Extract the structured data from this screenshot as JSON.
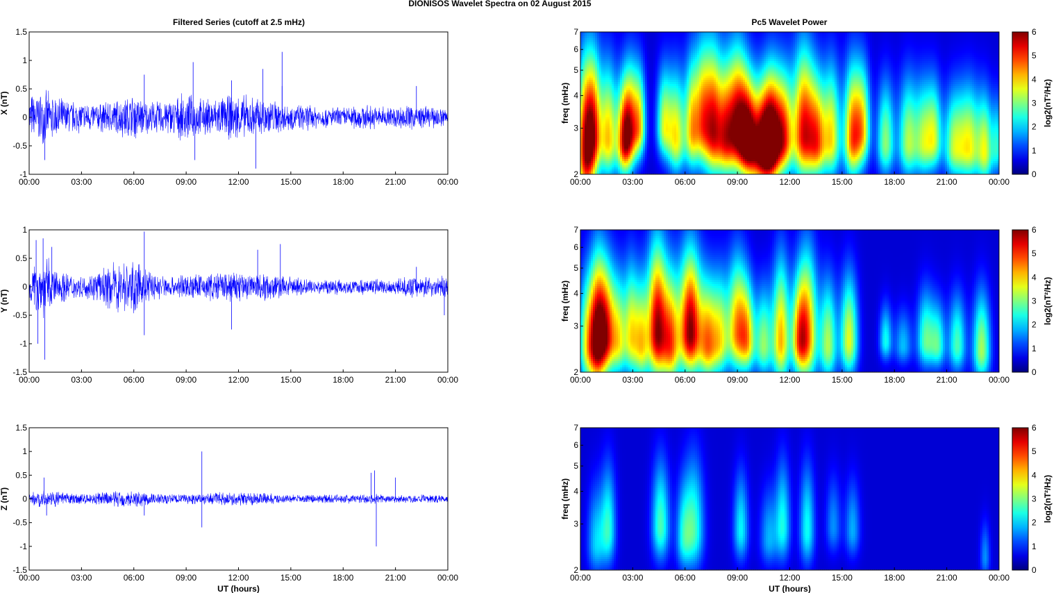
{
  "figure": {
    "suptitle": "DIONISOS Wavelet Spectra on 02 August    2015",
    "left_title": "Filtered Series (cutoff at 2.5 mHz)",
    "right_title": "Pc5 Wavelet Power"
  },
  "colors": {
    "trace": "#0000ff",
    "spectrum_background": "#00008f",
    "axes": "#000000"
  },
  "colorscale": "jet",
  "chart_data": [
    {
      "type": "line",
      "name": "x-series",
      "ylabel": "X (nT)",
      "xlabel": "",
      "xlim": [
        0,
        24
      ],
      "ylim": [
        -1,
        1.5
      ],
      "yticks": [
        "-1",
        "-0.5",
        "0",
        "0.5",
        "1",
        "1.5"
      ],
      "xticks": [
        "00:00",
        "03:00",
        "06:00",
        "09:00",
        "12:00",
        "15:00",
        "18:00",
        "21:00",
        "00:00"
      ],
      "envelope": [
        [
          0,
          0.45
        ],
        [
          1,
          0.5
        ],
        [
          2,
          0.35
        ],
        [
          3,
          0.3
        ],
        [
          4,
          0.28
        ],
        [
          5,
          0.35
        ],
        [
          6,
          0.45
        ],
        [
          7,
          0.3
        ],
        [
          8,
          0.35
        ],
        [
          9,
          0.45
        ],
        [
          10,
          0.35
        ],
        [
          11,
          0.4
        ],
        [
          12,
          0.45
        ],
        [
          13,
          0.4
        ],
        [
          14,
          0.35
        ],
        [
          15,
          0.25
        ],
        [
          16,
          0.25
        ],
        [
          17,
          0.2
        ],
        [
          18,
          0.2
        ],
        [
          19,
          0.25
        ],
        [
          20,
          0.22
        ],
        [
          21,
          0.22
        ],
        [
          22,
          0.25
        ],
        [
          23,
          0.2
        ],
        [
          24,
          0.2
        ]
      ],
      "spikes": [
        [
          0.9,
          -0.75
        ],
        [
          6.6,
          0.75
        ],
        [
          9.4,
          0.97
        ],
        [
          9.5,
          -0.75
        ],
        [
          11.6,
          0.65
        ],
        [
          13.0,
          -0.9
        ],
        [
          13.4,
          0.85
        ],
        [
          14.5,
          1.15
        ],
        [
          14.5,
          0.55
        ],
        [
          22.2,
          0.55
        ]
      ]
    },
    {
      "type": "line",
      "name": "y-series",
      "ylabel": "Y (nT)",
      "xlabel": "",
      "xlim": [
        0,
        24
      ],
      "ylim": [
        -1.5,
        1
      ],
      "yticks": [
        "-1.5",
        "-1",
        "-0.5",
        "0",
        "0.5",
        "1"
      ],
      "xticks": [
        "00:00",
        "03:00",
        "06:00",
        "09:00",
        "12:00",
        "15:00",
        "18:00",
        "21:00",
        "00:00"
      ],
      "envelope": [
        [
          0,
          0.3
        ],
        [
          0.5,
          0.55
        ],
        [
          1,
          0.6
        ],
        [
          1.5,
          0.35
        ],
        [
          2,
          0.3
        ],
        [
          3,
          0.2
        ],
        [
          4,
          0.3
        ],
        [
          5,
          0.5
        ],
        [
          6,
          0.5
        ],
        [
          7,
          0.3
        ],
        [
          8,
          0.2
        ],
        [
          9,
          0.25
        ],
        [
          10,
          0.25
        ],
        [
          11,
          0.3
        ],
        [
          12,
          0.3
        ],
        [
          13,
          0.3
        ],
        [
          14,
          0.25
        ],
        [
          15,
          0.2
        ],
        [
          16,
          0.15
        ],
        [
          17,
          0.15
        ],
        [
          18,
          0.15
        ],
        [
          19,
          0.15
        ],
        [
          20,
          0.15
        ],
        [
          21,
          0.15
        ],
        [
          22,
          0.2
        ],
        [
          23,
          0.2
        ],
        [
          24,
          0.2
        ]
      ],
      "spikes": [
        [
          0.4,
          0.82
        ],
        [
          0.5,
          -1.0
        ],
        [
          0.8,
          0.85
        ],
        [
          0.9,
          -1.28
        ],
        [
          1.3,
          0.7
        ],
        [
          6.6,
          0.97
        ],
        [
          6.6,
          -0.85
        ],
        [
          11.6,
          -0.75
        ],
        [
          13.1,
          0.65
        ],
        [
          14.4,
          0.75
        ],
        [
          22.2,
          0.35
        ],
        [
          23.8,
          -0.5
        ]
      ]
    },
    {
      "type": "line",
      "name": "z-series",
      "ylabel": "Z (nT)",
      "xlabel": "UT (hours)",
      "xlim": [
        0,
        24
      ],
      "ylim": [
        -1.5,
        1.5
      ],
      "yticks": [
        "-1.5",
        "-1",
        "-0.5",
        "0",
        "0.5",
        "1",
        "1.5"
      ],
      "xticks": [
        "00:00",
        "03:00",
        "06:00",
        "09:00",
        "12:00",
        "15:00",
        "18:00",
        "21:00",
        "00:00"
      ],
      "envelope": [
        [
          0,
          0.15
        ],
        [
          1,
          0.2
        ],
        [
          2,
          0.15
        ],
        [
          3,
          0.12
        ],
        [
          4,
          0.15
        ],
        [
          5,
          0.2
        ],
        [
          6,
          0.2
        ],
        [
          7,
          0.15
        ],
        [
          8,
          0.12
        ],
        [
          9,
          0.12
        ],
        [
          10,
          0.12
        ],
        [
          11,
          0.15
        ],
        [
          12,
          0.15
        ],
        [
          13,
          0.15
        ],
        [
          14,
          0.12
        ],
        [
          15,
          0.1
        ],
        [
          16,
          0.1
        ],
        [
          17,
          0.1
        ],
        [
          18,
          0.1
        ],
        [
          19,
          0.12
        ],
        [
          20,
          0.12
        ],
        [
          21,
          0.1
        ],
        [
          22,
          0.1
        ],
        [
          23,
          0.1
        ],
        [
          24,
          0.1
        ]
      ],
      "spikes": [
        [
          0.85,
          0.45
        ],
        [
          1.0,
          -0.35
        ],
        [
          6.6,
          -0.35
        ],
        [
          9.9,
          1.0
        ],
        [
          9.9,
          -0.6
        ],
        [
          19.6,
          0.55
        ],
        [
          19.8,
          0.6
        ],
        [
          19.9,
          -1.0
        ],
        [
          21.0,
          0.45
        ]
      ]
    },
    {
      "type": "heatmap",
      "name": "x-spectrum",
      "ylabel": "freq (mHz)",
      "xlabel": "",
      "xlim": [
        0,
        24
      ],
      "ylim": [
        2,
        7
      ],
      "yscale": "log",
      "yticks": [
        "2",
        "3",
        "4",
        "5",
        "6",
        "7"
      ],
      "xticks": [
        "00:00",
        "03:00",
        "06:00",
        "09:00",
        "12:00",
        "15:00",
        "18:00",
        "21:00",
        "00:00"
      ],
      "colorbar": {
        "label": "log2(nT²/Hz)",
        "range": [
          0,
          6
        ],
        "ticks": [
          "0",
          "1",
          "2",
          "3",
          "4",
          "5",
          "6"
        ]
      },
      "blobs": [
        [
          0.3,
          2.4,
          5.5,
          0.35,
          1.25
        ],
        [
          0.8,
          2.8,
          3.8,
          0.3,
          1.1
        ],
        [
          1.6,
          2.7,
          3.8,
          0.35,
          1.0
        ],
        [
          2.5,
          2.6,
          4.5,
          0.3,
          0.85
        ],
        [
          2.9,
          2.9,
          3.8,
          0.3,
          0.9
        ],
        [
          3.4,
          3.0,
          3.2,
          0.25,
          0.8
        ],
        [
          4.8,
          3.0,
          3.0,
          0.3,
          0.8
        ],
        [
          5.5,
          2.7,
          3.5,
          0.35,
          0.9
        ],
        [
          6.4,
          2.9,
          3.7,
          0.3,
          1.0
        ],
        [
          7.0,
          3.1,
          3.5,
          0.3,
          1.1
        ],
        [
          7.6,
          2.9,
          4.8,
          0.35,
          1.15
        ],
        [
          8.3,
          2.7,
          4.0,
          0.35,
          1.0
        ],
        [
          9.0,
          2.9,
          5.2,
          0.4,
          1.1
        ],
        [
          9.6,
          2.6,
          4.5,
          0.35,
          0.9
        ],
        [
          10.4,
          2.4,
          5.6,
          0.5,
          0.9
        ],
        [
          11.0,
          2.6,
          5.0,
          0.4,
          1.0
        ],
        [
          11.7,
          2.7,
          4.0,
          0.35,
          0.9
        ],
        [
          12.8,
          2.8,
          5.2,
          0.45,
          1.15
        ],
        [
          13.6,
          2.6,
          3.8,
          0.35,
          0.9
        ],
        [
          14.4,
          2.7,
          3.5,
          0.35,
          1.0
        ],
        [
          15.6,
          2.7,
          4.5,
          0.35,
          1.0
        ],
        [
          16.2,
          2.9,
          3.2,
          0.3,
          0.9
        ],
        [
          17.5,
          2.6,
          2.8,
          0.35,
          0.85
        ],
        [
          18.8,
          2.6,
          3.0,
          0.4,
          0.9
        ],
        [
          19.7,
          2.6,
          2.8,
          0.35,
          0.85
        ],
        [
          20.3,
          2.7,
          2.7,
          0.3,
          0.8
        ],
        [
          21.4,
          2.5,
          2.8,
          0.4,
          0.8
        ],
        [
          22.3,
          2.5,
          3.4,
          0.45,
          0.85
        ],
        [
          23.2,
          2.4,
          3.0,
          0.3,
          0.8
        ],
        [
          23.9,
          2.5,
          2.0,
          0.25,
          0.7
        ]
      ]
    },
    {
      "type": "heatmap",
      "name": "y-spectrum",
      "ylabel": "freq (mHz)",
      "xlabel": "",
      "xlim": [
        0,
        24
      ],
      "ylim": [
        2,
        7
      ],
      "yscale": "log",
      "yticks": [
        "2",
        "3",
        "4",
        "5",
        "6",
        "7"
      ],
      "xticks": [
        "00:00",
        "03:00",
        "06:00",
        "09:00",
        "12:00",
        "15:00",
        "18:00",
        "21:00",
        "00:00"
      ],
      "colorbar": {
        "label": "log2(nT²/Hz)",
        "range": [
          0,
          6
        ],
        "ticks": [
          "0",
          "1",
          "2",
          "3",
          "4",
          "5",
          "6"
        ]
      },
      "blobs": [
        [
          0.5,
          2.5,
          3.8,
          0.4,
          1.0
        ],
        [
          1.0,
          2.6,
          3.8,
          0.3,
          1.2
        ],
        [
          1.5,
          2.7,
          4.8,
          0.35,
          1.0
        ],
        [
          2.2,
          2.6,
          3.0,
          0.3,
          0.9
        ],
        [
          2.9,
          2.7,
          3.2,
          0.3,
          1.0
        ],
        [
          3.5,
          2.5,
          3.2,
          0.3,
          0.9
        ],
        [
          4.4,
          2.8,
          5.7,
          0.4,
          1.2
        ],
        [
          5.2,
          2.5,
          4.0,
          0.35,
          1.0
        ],
        [
          6.3,
          2.8,
          6.0,
          0.45,
          1.1
        ],
        [
          7.3,
          2.5,
          3.8,
          0.35,
          0.9
        ],
        [
          8.0,
          2.6,
          3.2,
          0.35,
          0.9
        ],
        [
          9.0,
          2.8,
          4.2,
          0.4,
          1.0
        ],
        [
          9.6,
          2.6,
          3.0,
          0.3,
          0.8
        ],
        [
          10.5,
          2.5,
          2.8,
          0.35,
          0.8
        ],
        [
          11.5,
          2.6,
          4.0,
          0.35,
          1.1
        ],
        [
          12.5,
          2.6,
          3.0,
          0.3,
          0.85
        ],
        [
          13.0,
          2.7,
          4.4,
          0.4,
          1.15
        ],
        [
          14.2,
          2.5,
          3.0,
          0.35,
          0.9
        ],
        [
          15.4,
          2.6,
          3.4,
          0.35,
          0.9
        ],
        [
          17.5,
          2.6,
          2.0,
          0.25,
          0.5
        ],
        [
          18.5,
          2.5,
          1.5,
          0.35,
          0.5
        ],
        [
          19.8,
          2.6,
          2.5,
          0.35,
          0.7
        ],
        [
          20.5,
          2.5,
          2.2,
          0.3,
          0.6
        ],
        [
          21.6,
          2.5,
          2.4,
          0.35,
          0.7
        ],
        [
          23.0,
          2.4,
          3.0,
          0.35,
          0.8
        ]
      ]
    },
    {
      "type": "heatmap",
      "name": "z-spectrum",
      "ylabel": "freq (mHz)",
      "xlabel": "UT (hours)",
      "xlim": [
        0,
        24
      ],
      "ylim": [
        2,
        7
      ],
      "yscale": "log",
      "yticks": [
        "2",
        "3",
        "4",
        "5",
        "6",
        "7"
      ],
      "xticks": [
        "00:00",
        "03:00",
        "06:00",
        "09:00",
        "12:00",
        "15:00",
        "18:00",
        "21:00",
        "00:00"
      ],
      "colorbar": {
        "label": "log2(nT²/Hz)",
        "range": [
          0,
          6
        ],
        "ticks": [
          "0",
          "1",
          "2",
          "3",
          "4",
          "5",
          "6"
        ]
      },
      "blobs": [
        [
          0.9,
          2.5,
          1.6,
          0.35,
          0.8
        ],
        [
          1.6,
          2.8,
          2.1,
          0.3,
          0.9
        ],
        [
          4.6,
          2.9,
          2.4,
          0.35,
          0.9
        ],
        [
          5.9,
          2.6,
          1.6,
          0.3,
          0.8
        ],
        [
          6.5,
          2.8,
          2.3,
          0.4,
          1.0
        ],
        [
          9.2,
          2.8,
          1.9,
          0.3,
          0.8
        ],
        [
          10.8,
          2.6,
          1.4,
          0.35,
          0.7
        ],
        [
          11.6,
          2.9,
          2.0,
          0.3,
          0.9
        ],
        [
          13.0,
          2.8,
          2.0,
          0.3,
          0.9
        ],
        [
          14.5,
          2.9,
          1.2,
          0.3,
          0.7
        ],
        [
          15.6,
          2.8,
          1.4,
          0.3,
          0.7
        ],
        [
          23.2,
          2.2,
          1.2,
          0.2,
          0.5
        ]
      ]
    }
  ]
}
